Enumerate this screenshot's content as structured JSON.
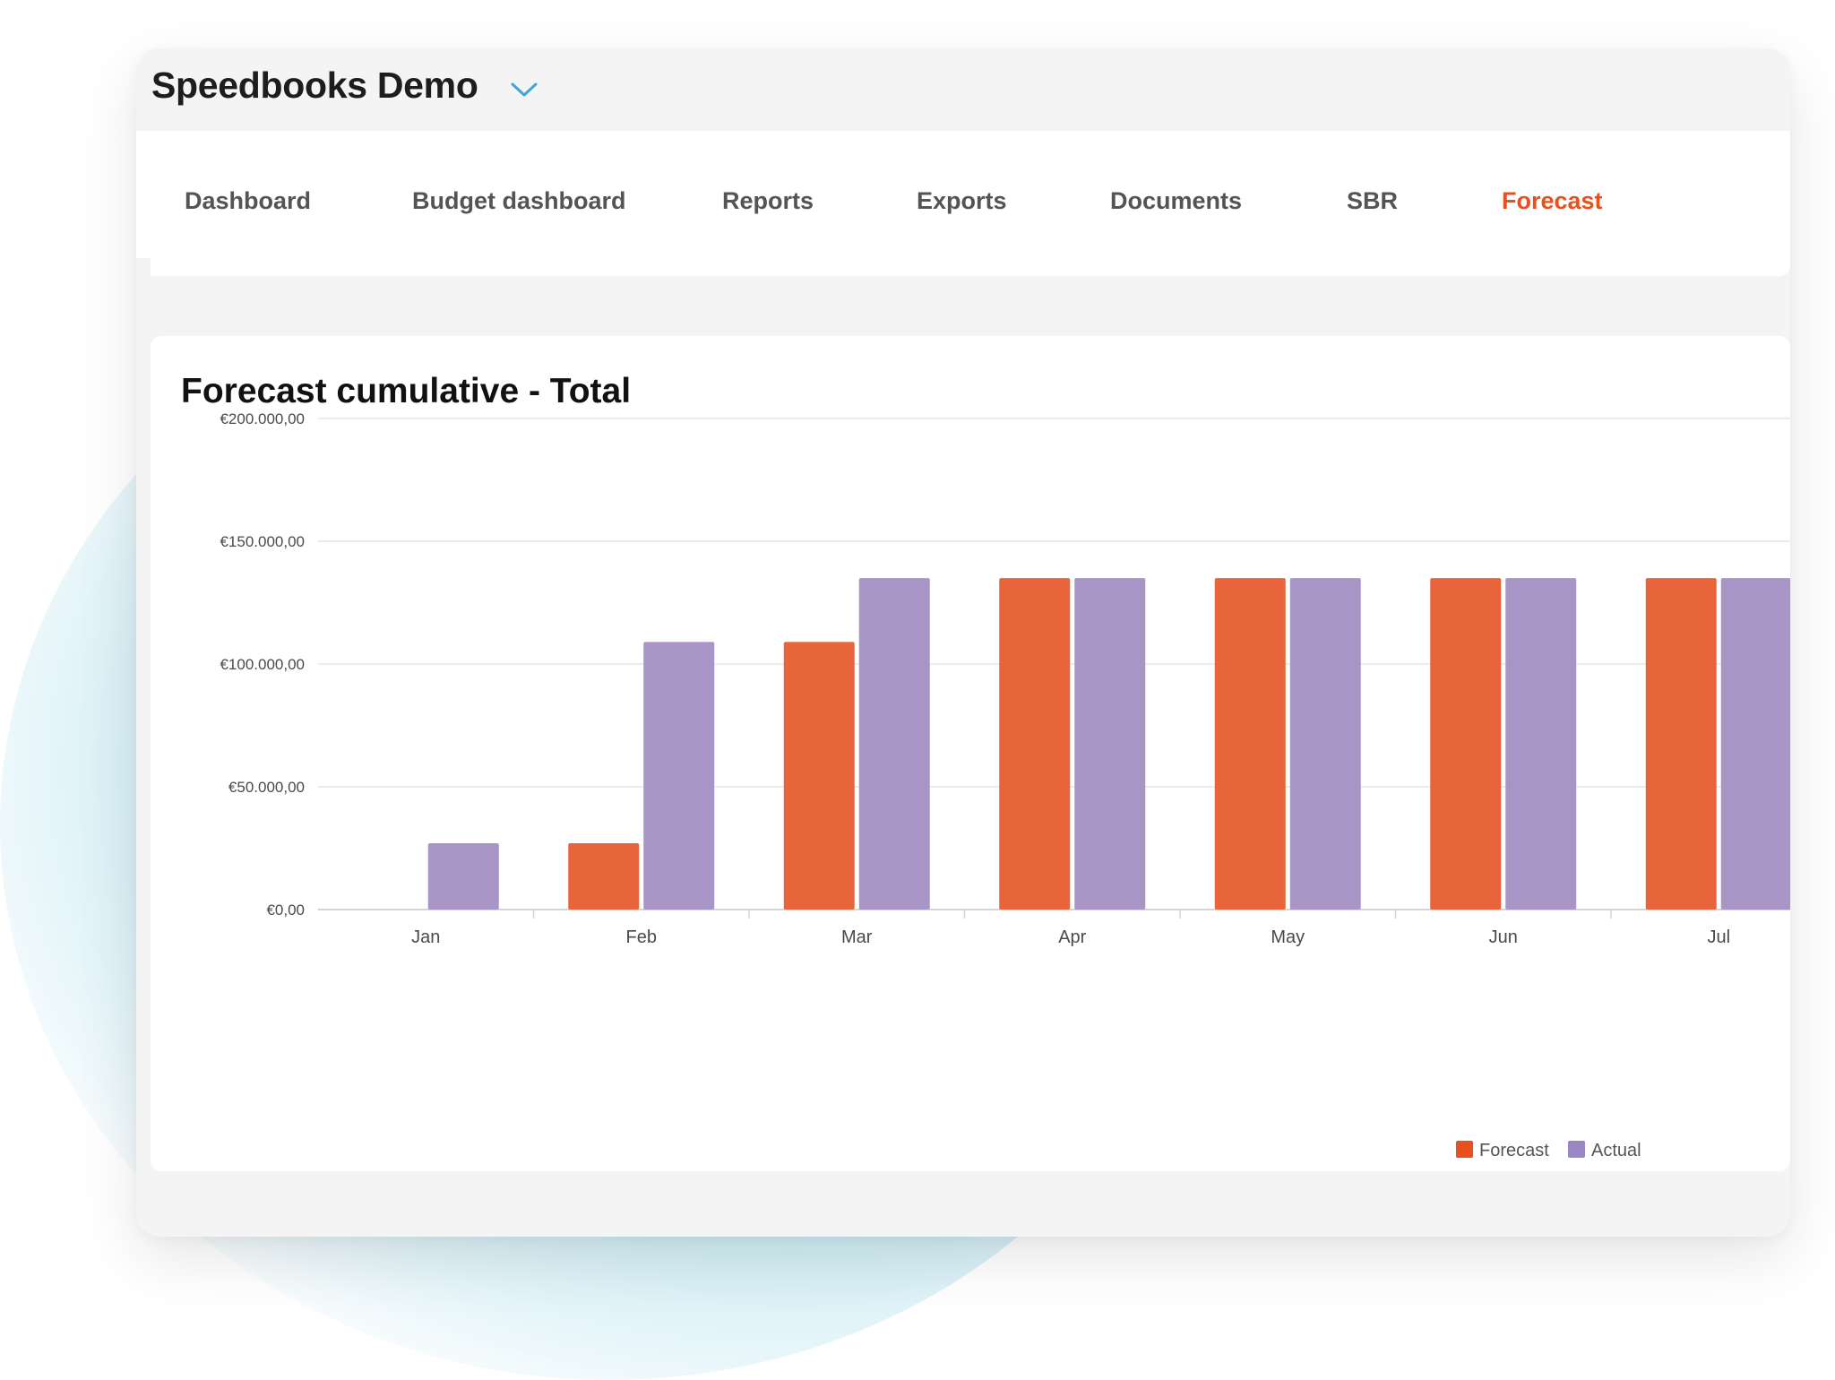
{
  "header": {
    "org_name": "Speedbooks Demo",
    "org_switcher_icon": "chevron-down-icon"
  },
  "nav": {
    "tabs": [
      {
        "label": "Dashboard",
        "active": false
      },
      {
        "label": "Budget dashboard",
        "active": false
      },
      {
        "label": "Reports",
        "active": false
      },
      {
        "label": "Exports",
        "active": false
      },
      {
        "label": "Documents",
        "active": false
      },
      {
        "label": "SBR",
        "active": false
      },
      {
        "label": "Forecast",
        "active": true
      }
    ]
  },
  "colors": {
    "accent": "#e8511e",
    "forecast_bar": "#e8643a",
    "actual_bar": "#a895c6",
    "chevron": "#3da6d9"
  },
  "chart_data": {
    "type": "bar",
    "title": "Forecast cumulative - Total",
    "categories": [
      "Jan",
      "Feb",
      "Mar",
      "Apr",
      "May",
      "Jun",
      "Jul"
    ],
    "series": [
      {
        "name": "Forecast",
        "values": [
          0,
          27000,
          109000,
          135000,
          135000,
          135000,
          135000
        ]
      },
      {
        "name": "Actual",
        "values": [
          27000,
          109000,
          135000,
          135000,
          135000,
          135000,
          135000
        ]
      }
    ],
    "y_ticks": [
      {
        "value": 0,
        "label": "€0,00"
      },
      {
        "value": 50000,
        "label": "€50.000,00"
      },
      {
        "value": 100000,
        "label": "€100.000,00"
      },
      {
        "value": 150000,
        "label": "€150.000,00"
      },
      {
        "value": 200000,
        "label": "€200.000,00"
      }
    ],
    "ylim": [
      0,
      200000
    ],
    "grid": true,
    "legend_position": "bottom-right"
  }
}
